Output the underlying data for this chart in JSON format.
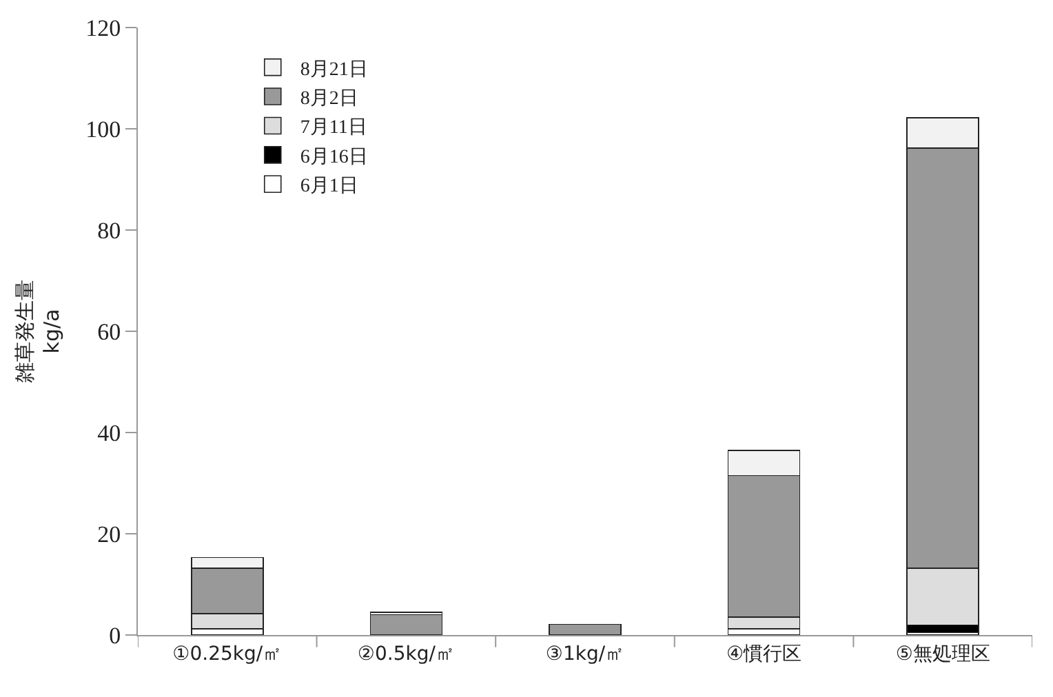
{
  "chart_data": {
    "type": "bar",
    "stacked": true,
    "ylabel": "雑草発生量\nkg/a",
    "categories": [
      "①0.25kg/㎡",
      "②0.5kg/㎡",
      "③1kg/㎡",
      "④慣行区",
      "⑤無処理区"
    ],
    "series": [
      {
        "name": "6月1日",
        "color": "#ffffff",
        "values": [
          1.2,
          null,
          null,
          1.2,
          0.5
        ]
      },
      {
        "name": "6月16日",
        "color": "#000000",
        "values": [
          null,
          null,
          null,
          null,
          1.5
        ]
      },
      {
        "name": "7月11日",
        "color": "#dddddd",
        "values": [
          3.0,
          null,
          null,
          2.3,
          11.2
        ]
      },
      {
        "name": "8月2日",
        "color": "#999999",
        "values": [
          9.0,
          4.0,
          2.1,
          28.0,
          83.0
        ]
      },
      {
        "name": "8月21日",
        "color": "#f2f2f2",
        "values": [
          2.1,
          0.5,
          null,
          5.0,
          6.0
        ]
      }
    ],
    "ylim": [
      0,
      120
    ],
    "yticks": [
      0,
      20,
      40,
      60,
      80,
      100,
      120
    ],
    "legend": "top left"
  }
}
